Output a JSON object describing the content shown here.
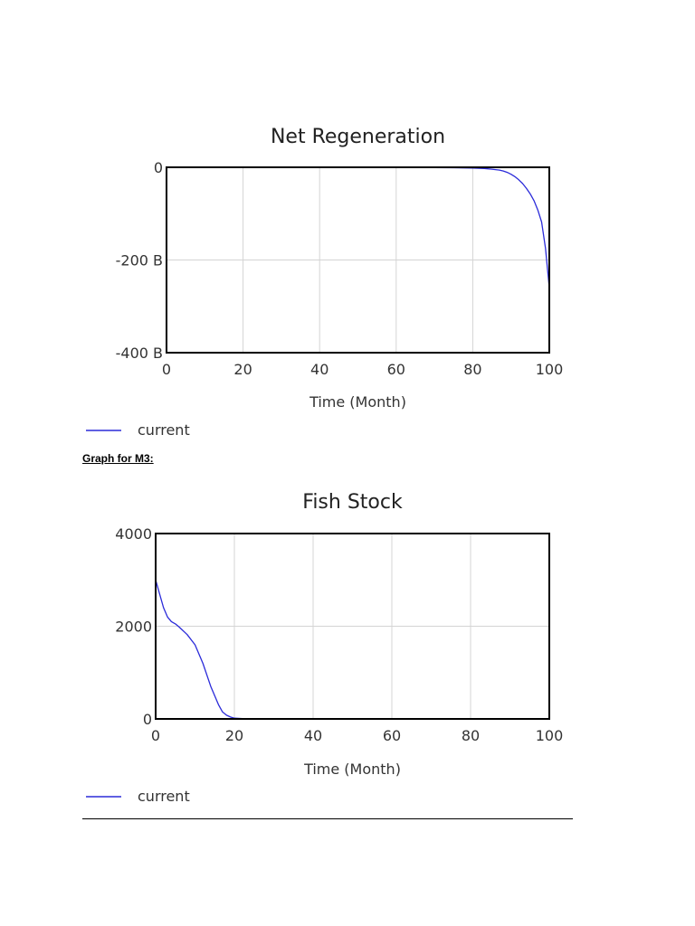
{
  "section_label": "Graph for M3:",
  "chart_data": [
    {
      "type": "line",
      "title": "Net Regeneration",
      "xlabel": "Time (Month)",
      "ylabel": "",
      "xlim": [
        0,
        100
      ],
      "ylim": [
        -400,
        0
      ],
      "x_ticks": [
        0,
        20,
        40,
        60,
        80,
        100
      ],
      "x_tick_labels": [
        "0",
        "20",
        "40",
        "60",
        "80",
        "100"
      ],
      "y_ticks": [
        0,
        -200,
        -400
      ],
      "y_tick_labels": [
        "0",
        "-200 B",
        "-400 B"
      ],
      "grid": true,
      "legend_placement": "bottom-left",
      "series": [
        {
          "name": "current",
          "color": "#2b2bd9",
          "x": [
            0,
            20,
            40,
            50,
            60,
            70,
            75,
            80,
            83,
            85,
            87,
            88,
            89,
            90,
            91,
            92,
            93,
            94,
            95,
            96,
            97,
            98,
            99,
            100
          ],
          "y": [
            0,
            0,
            0,
            -0.3,
            -0.4,
            -0.6,
            -0.9,
            -1.5,
            -2.5,
            -4,
            -6,
            -8,
            -11,
            -15,
            -20,
            -27,
            -35,
            -45,
            -57,
            -72,
            -92,
            -118,
            -175,
            -260
          ]
        }
      ]
    },
    {
      "type": "line",
      "title": "Fish Stock",
      "xlabel": "Time (Month)",
      "ylabel": "",
      "xlim": [
        0,
        100
      ],
      "ylim": [
        0,
        4000
      ],
      "x_ticks": [
        0,
        20,
        40,
        60,
        80,
        100
      ],
      "x_tick_labels": [
        "0",
        "20",
        "40",
        "60",
        "80",
        "100"
      ],
      "y_ticks": [
        4000,
        2000,
        0
      ],
      "y_tick_labels": [
        "4000",
        "2000",
        "0"
      ],
      "grid": true,
      "legend_placement": "bottom-left",
      "series": [
        {
          "name": "current",
          "color": "#2b2bd9",
          "x": [
            0,
            1,
            2,
            3,
            4,
            5,
            6,
            8,
            10,
            12,
            14,
            16,
            17,
            18,
            19,
            20,
            22,
            25,
            30,
            40,
            60,
            80,
            100
          ],
          "y": [
            3000,
            2700,
            2400,
            2200,
            2100,
            2050,
            1980,
            1820,
            1600,
            1200,
            700,
            300,
            150,
            80,
            40,
            15,
            5,
            0,
            0,
            0,
            0,
            0,
            0
          ]
        }
      ]
    }
  ]
}
